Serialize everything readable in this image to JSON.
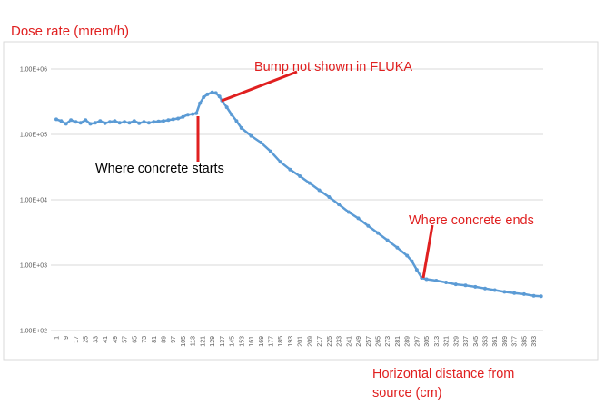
{
  "chart_data": {
    "type": "line",
    "ylabel": "Dose rate (mrem/h)",
    "xlabel": "Horizontal distance from source (cm)",
    "xlabel_lines": [
      "Horizontal distance from",
      "source (cm)"
    ],
    "y_scale": "log",
    "ylim": [
      100,
      1000000
    ],
    "y_ticks": [
      {
        "value": 1000000,
        "label": "1.00E+06"
      },
      {
        "value": 100000,
        "label": "1.00E+05"
      },
      {
        "value": 10000,
        "label": "1.00E+04"
      },
      {
        "value": 1000,
        "label": "1.00E+03"
      },
      {
        "value": 100,
        "label": "1.00E+02"
      }
    ],
    "x_ticks": [
      "1",
      "9",
      "17",
      "25",
      "33",
      "41",
      "49",
      "57",
      "65",
      "73",
      "81",
      "89",
      "97",
      "105",
      "113",
      "121",
      "129",
      "137",
      "145",
      "153",
      "161",
      "169",
      "177",
      "185",
      "193",
      "201",
      "209",
      "217",
      "225",
      "233",
      "241",
      "249",
      "257",
      "265",
      "273",
      "281",
      "289",
      "297",
      "305",
      "313",
      "321",
      "329",
      "337",
      "345",
      "353",
      "361",
      "369",
      "377",
      "385",
      "393"
    ],
    "xlim": [
      1,
      400
    ],
    "grid": "horizontal",
    "series": [
      {
        "color": "#5b9bd5",
        "points": [
          [
            1,
            170000
          ],
          [
            5,
            160000
          ],
          [
            9,
            145000
          ],
          [
            13,
            165000
          ],
          [
            17,
            155000
          ],
          [
            21,
            150000
          ],
          [
            25,
            165000
          ],
          [
            29,
            145000
          ],
          [
            33,
            150000
          ],
          [
            37,
            160000
          ],
          [
            41,
            148000
          ],
          [
            45,
            155000
          ],
          [
            49,
            160000
          ],
          [
            53,
            150000
          ],
          [
            57,
            155000
          ],
          [
            61,
            150000
          ],
          [
            65,
            160000
          ],
          [
            69,
            148000
          ],
          [
            73,
            155000
          ],
          [
            77,
            150000
          ],
          [
            81,
            155000
          ],
          [
            85,
            158000
          ],
          [
            89,
            160000
          ],
          [
            93,
            165000
          ],
          [
            97,
            170000
          ],
          [
            101,
            175000
          ],
          [
            105,
            185000
          ],
          [
            109,
            200000
          ],
          [
            113,
            205000
          ],
          [
            116,
            210000
          ],
          [
            119,
            300000
          ],
          [
            122,
            370000
          ],
          [
            125,
            410000
          ],
          [
            129,
            440000
          ],
          [
            132,
            430000
          ],
          [
            135,
            380000
          ],
          [
            137,
            330000
          ],
          [
            141,
            260000
          ],
          [
            145,
            200000
          ],
          [
            149,
            160000
          ],
          [
            153,
            125000
          ],
          [
            161,
            95000
          ],
          [
            169,
            75000
          ],
          [
            177,
            55000
          ],
          [
            185,
            38000
          ],
          [
            193,
            29000
          ],
          [
            201,
            23000
          ],
          [
            209,
            18000
          ],
          [
            217,
            14000
          ],
          [
            225,
            11000
          ],
          [
            233,
            8500
          ],
          [
            241,
            6500
          ],
          [
            249,
            5200
          ],
          [
            257,
            4000
          ],
          [
            265,
            3100
          ],
          [
            273,
            2400
          ],
          [
            281,
            1850
          ],
          [
            289,
            1400
          ],
          [
            293,
            1150
          ],
          [
            297,
            850
          ],
          [
            301,
            640
          ],
          [
            305,
            610
          ],
          [
            313,
            580
          ],
          [
            321,
            545
          ],
          [
            329,
            510
          ],
          [
            337,
            490
          ],
          [
            345,
            465
          ],
          [
            353,
            440
          ],
          [
            361,
            415
          ],
          [
            369,
            390
          ],
          [
            377,
            375
          ],
          [
            385,
            360
          ],
          [
            393,
            340
          ],
          [
            399,
            335
          ]
        ]
      }
    ],
    "annotations": [
      {
        "text": "Bump not shown in FLUKA",
        "color": "#e02020"
      },
      {
        "text": "Where concrete starts",
        "color": "#000000"
      },
      {
        "text": "Where concrete ends",
        "color": "#e02020"
      }
    ]
  }
}
